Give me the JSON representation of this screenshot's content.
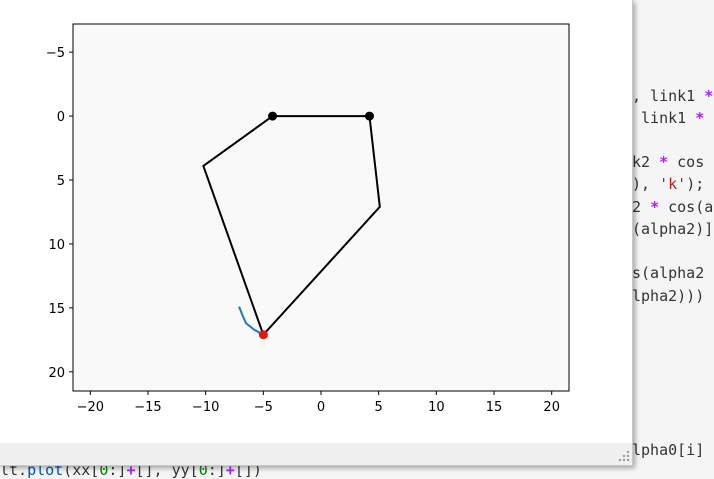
{
  "editor": {
    "lines": [
      {
        "segments": [
          {
            "t": ", link1 ",
            "c": "plain"
          },
          {
            "t": "*",
            "c": "kw"
          }
        ]
      },
      {
        "segments": [
          {
            "t": " link1 ",
            "c": "plain"
          },
          {
            "t": "*",
            "c": "kw"
          }
        ]
      },
      {
        "segments": [
          {
            "t": "k2 ",
            "c": "plain"
          },
          {
            "t": "*",
            "c": "kw"
          },
          {
            "t": " cos",
            "c": "plain"
          }
        ]
      },
      {
        "segments": [
          {
            "t": "), ",
            "c": "plain"
          },
          {
            "t": "'k'",
            "c": "str"
          },
          {
            "t": ");",
            "c": "plain"
          }
        ]
      },
      {
        "segments": [
          {
            "t": "2 ",
            "c": "plain"
          },
          {
            "t": "*",
            "c": "kw"
          },
          {
            "t": " cos(a",
            "c": "plain"
          }
        ]
      },
      {
        "segments": [
          {
            "t": "(alpha2)]",
            "c": "plain"
          }
        ]
      },
      {
        "segments": [
          {
            "t": "s(alpha2",
            "c": "plain"
          }
        ]
      },
      {
        "segments": [
          {
            "t": "lpha2)))",
            "c": "plain"
          }
        ]
      },
      {
        "segments": [
          {
            "t": "lpha0[i]",
            "c": "plain"
          }
        ]
      },
      {
        "segments": [
          {
            "t": "lt.",
            "c": "plain"
          },
          {
            "t": "plot",
            "c": "fn"
          },
          {
            "t": "(xx[",
            "c": "plain"
          },
          {
            "t": "0",
            "c": "num"
          },
          {
            "t": ":]",
            "c": "plain"
          },
          {
            "t": "+",
            "c": "kw"
          },
          {
            "t": "[], yy[",
            "c": "plain"
          },
          {
            "t": "0",
            "c": "num"
          },
          {
            "t": ":]",
            "c": "plain"
          },
          {
            "t": "+",
            "c": "kw"
          },
          {
            "t": "[])",
            "c": "plain"
          }
        ]
      }
    ]
  },
  "chart_data": {
    "type": "line",
    "title": "",
    "xlabel": "",
    "ylabel": "",
    "xlim": [
      -21.5,
      21.5
    ],
    "ylim": [
      21.5,
      -7.2
    ],
    "y_inverted": true,
    "grid": false,
    "x_ticks": [
      -20,
      -15,
      -10,
      -5,
      0,
      5,
      10,
      15,
      20
    ],
    "x_tick_labels": [
      "−20",
      "−15",
      "−10",
      "−5",
      "0",
      "5",
      "10",
      "15",
      "20"
    ],
    "y_ticks": [
      -5,
      0,
      5,
      10,
      15,
      20
    ],
    "y_tick_labels": [
      "−5",
      "0",
      "5",
      "10",
      "15",
      "20"
    ],
    "series": [
      {
        "role": "linkage",
        "color": "#000000",
        "points": [
          [
            -4.2,
            0
          ],
          [
            -10.2,
            3.9
          ],
          [
            -5.0,
            17.1
          ],
          [
            5.1,
            7.1
          ],
          [
            4.2,
            0
          ],
          [
            -4.2,
            0
          ]
        ]
      },
      {
        "role": "trace",
        "color": "#1f77b4",
        "points": [
          [
            -7.1,
            14.9
          ],
          [
            -6.8,
            15.6
          ],
          [
            -6.5,
            16.2
          ],
          [
            -5.8,
            16.7
          ],
          [
            -5.0,
            17.1
          ]
        ]
      }
    ],
    "markers": [
      {
        "x": -4.2,
        "y": 0,
        "color": "#000000"
      },
      {
        "x": 4.2,
        "y": 0,
        "color": "#000000"
      },
      {
        "x": -5.0,
        "y": 17.1,
        "color": "#ee1111"
      }
    ]
  }
}
